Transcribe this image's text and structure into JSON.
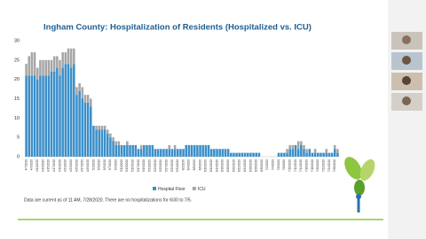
{
  "chart_data": {
    "type": "stacked-bar",
    "title": "Ingham County: Hospitalization of Residents (Hospitalized vs. ICU)",
    "note": "Data are current as of 11 AM, 7/28/2020.  There are no hospitalizations for 6/30 to 7/5.",
    "categories": [
      "4/7/2020",
      null,
      "4/9/2020",
      null,
      "4/11/2020",
      null,
      "4/13/2020",
      null,
      "4/15/2020",
      null,
      "4/17/2020",
      null,
      "4/19/2020",
      null,
      "4/21/2020",
      null,
      "4/23/2020",
      null,
      "4/25/2020",
      null,
      "4/27/2020",
      null,
      "4/29/2020",
      null,
      "5/1/2020",
      null,
      "5/3/2020",
      null,
      "5/5/2020",
      null,
      "5/7/2020",
      null,
      "5/9/2020",
      null,
      "5/11/2020",
      null,
      "5/13/2020",
      null,
      "5/15/2020",
      null,
      "5/17/2020",
      null,
      "5/19/2020",
      null,
      "5/21/2020",
      null,
      "5/23/2020",
      null,
      "5/25/2020",
      null,
      "5/27/2020",
      null,
      "5/29/2020",
      null,
      "5/31/2020",
      null,
      "6/2/2020",
      null,
      "6/4/2020",
      null,
      "6/6/2020",
      null,
      "6/8/2020",
      null,
      "6/10/2020",
      null,
      "6/12/2020",
      null,
      "6/14/2020",
      null,
      "6/16/2020",
      null,
      "6/18/2020",
      null,
      "6/20/2020",
      null,
      "6/22/2020",
      null,
      "6/24/2020",
      null,
      "6/26/2020",
      null,
      "6/28/2020",
      null,
      "6/30/2020",
      null,
      "7/2/2020",
      null,
      "7/4/2020",
      null,
      "7/6/2020",
      null,
      "7/8/2020",
      null,
      "7/10/2020",
      null,
      "7/12/2020",
      null,
      "7/14/2020",
      null,
      "7/16/2020",
      null,
      "7/18/2020",
      null,
      "7/20/2020",
      null,
      "7/22/2020",
      null,
      "7/24/2020",
      null,
      "7/26/2020",
      null
    ],
    "series": [
      {
        "name": "Hospital Floor",
        "color": "#3a8fc9",
        "values": [
          21,
          21,
          21,
          21,
          20,
          21,
          21,
          21,
          21,
          22,
          22,
          23,
          21,
          23,
          24,
          24,
          23,
          24,
          16,
          17,
          15,
          14,
          14,
          13,
          8,
          7,
          7,
          7,
          7,
          6,
          5,
          4,
          3,
          3,
          3,
          3,
          3,
          3,
          3,
          3,
          2,
          2,
          3,
          3,
          3,
          3,
          2,
          2,
          2,
          2,
          2,
          2,
          2,
          2,
          2,
          2,
          2,
          3,
          3,
          3,
          3,
          3,
          3,
          3,
          3,
          3,
          2,
          2,
          2,
          2,
          2,
          2,
          2,
          1,
          1,
          1,
          1,
          1,
          1,
          1,
          1,
          1,
          1,
          1,
          0,
          0,
          0,
          0,
          0,
          0,
          1,
          1,
          1,
          1,
          2,
          2,
          3,
          2,
          3,
          2,
          1,
          2,
          1,
          1,
          1,
          1,
          1,
          1,
          1,
          1,
          2,
          1
        ]
      },
      {
        "name": "ICU",
        "color": "#a6a6a6",
        "values": [
          3,
          5,
          6,
          6,
          3,
          4,
          4,
          4,
          4,
          3,
          4,
          3,
          4,
          4,
          3,
          4,
          5,
          4,
          2,
          2,
          3,
          2,
          2,
          2,
          0,
          1,
          1,
          1,
          1,
          1,
          1,
          1,
          1,
          1,
          0,
          0,
          1,
          0,
          0,
          0,
          0,
          1,
          0,
          0,
          0,
          0,
          0,
          0,
          0,
          0,
          0,
          1,
          0,
          1,
          0,
          0,
          0,
          0,
          0,
          0,
          0,
          0,
          0,
          0,
          0,
          0,
          0,
          0,
          0,
          0,
          0,
          0,
          0,
          0,
          0,
          0,
          0,
          0,
          0,
          0,
          0,
          0,
          0,
          0,
          0,
          0,
          0,
          0,
          0,
          0,
          0,
          0,
          0,
          1,
          1,
          1,
          0,
          2,
          1,
          1,
          1,
          0,
          0,
          1,
          0,
          0,
          0,
          1,
          0,
          0,
          1,
          1
        ]
      }
    ],
    "ylim": [
      0,
      30
    ],
    "yticks": [
      0,
      5,
      10,
      15,
      20,
      25,
      30
    ]
  }
}
